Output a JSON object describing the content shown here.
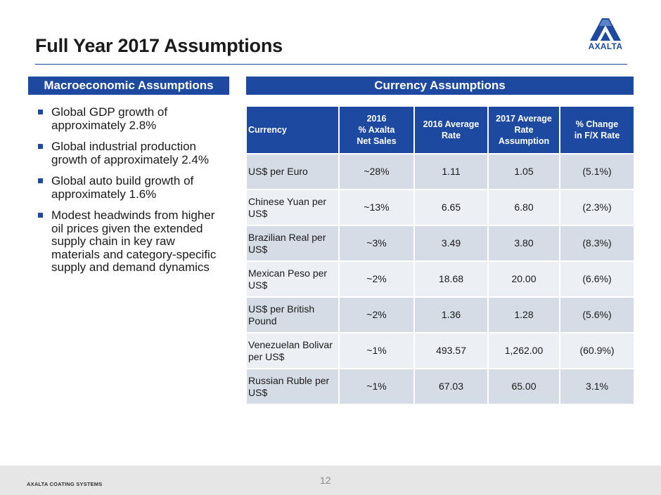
{
  "slide": {
    "title": "Full Year 2017 Assumptions",
    "logo_text": "AXALTA",
    "page_number": "12",
    "footer": "AXALTA COATING SYSTEMS"
  },
  "macro": {
    "heading": "Macroeconomic Assumptions",
    "bullets": [
      "Global GDP growth of approximately 2.8%",
      "Global industrial production growth of approximately 2.4%",
      "Global auto build growth of approximately 1.6%",
      "Modest headwinds from higher oil prices given the extended supply chain in key raw materials and category-specific supply and demand dynamics"
    ]
  },
  "currency": {
    "heading": "Currency Assumptions",
    "columns": [
      "Currency",
      "2016\n% Axalta\nNet Sales",
      "2016 Average Rate",
      "2017 Average Rate Assumption",
      "% Change\nin F/X Rate"
    ],
    "rows": [
      [
        "US$ per Euro",
        "~28%",
        "1.11",
        "1.05",
        "(5.1%)"
      ],
      [
        "Chinese Yuan per US$",
        "~13%",
        "6.65",
        "6.80",
        "(2.3%)"
      ],
      [
        "Brazilian Real per US$",
        "~3%",
        "3.49",
        "3.80",
        "(8.3%)"
      ],
      [
        "Mexican Peso per US$",
        "~2%",
        "18.68",
        "20.00",
        "(6.6%)"
      ],
      [
        "US$ per British Pound",
        "~2%",
        "1.36",
        "1.28",
        "(5.6%)"
      ],
      [
        "Venezuelan Bolivar per US$",
        "~1%",
        "493.57",
        "1,262.00",
        "(60.9%)"
      ],
      [
        "Russian Ruble per US$",
        "~1%",
        "67.03",
        "65.00",
        "3.1%"
      ]
    ]
  },
  "colors": {
    "brand_blue": "#1d4aa0",
    "row_dark": "#d6dce6",
    "row_light": "#eceff4"
  }
}
